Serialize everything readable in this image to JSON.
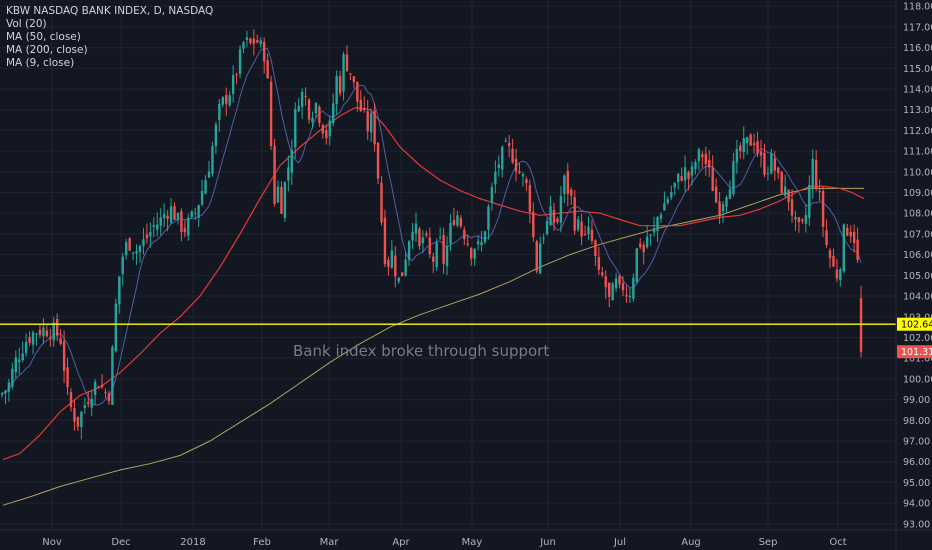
{
  "legend": {
    "title": "KBW NASDAQ BANK INDEX, D, NASDAQ",
    "vol": "Vol (20)",
    "ma50": "MA (50, close)",
    "ma200": "MA (200, close)",
    "ma9": "MA (9, close)"
  },
  "annotation": "Bank index broke through support",
  "colors": {
    "background": "#131722",
    "grid": "#1f2430",
    "up": "#26a69a",
    "down": "#ef5350",
    "ma50": "#e53935",
    "ma200": "#b3a15f",
    "ma9": "#5c6bc0",
    "support": "#ffff00",
    "axis_text": "#b2b5be"
  },
  "chart_data": {
    "type": "candlestick",
    "ylim": [
      92.7,
      118.3
    ],
    "y_ticks": [
      "93.00",
      "94.00",
      "95.00",
      "96.00",
      "97.00",
      "98.00",
      "99.00",
      "100.00",
      "101.00",
      "102.00",
      "103.00",
      "104.00",
      "105.00",
      "106.00",
      "107.00",
      "108.00",
      "109.00",
      "110.00",
      "111.00",
      "112.00",
      "113.00",
      "114.00",
      "115.00",
      "116.00",
      "117.00",
      "118.00"
    ],
    "x_ticks": [
      "Nov",
      "Dec",
      "2018",
      "Feb",
      "Mar",
      "Apr",
      "May",
      "Jun",
      "Jul",
      "Aug",
      "Sep",
      "Oct"
    ],
    "support_level": 102.64,
    "price_labels": [
      {
        "text": "102.64",
        "value": 102.64,
        "color": "#ffff00",
        "text_color": "#000000"
      },
      {
        "text": "101.31",
        "value": 101.31,
        "color": "#ef5350",
        "text_color": "#ffffff"
      }
    ],
    "close_path": [
      [
        0,
        99.2
      ],
      [
        8,
        99.6
      ],
      [
        15,
        100.8
      ],
      [
        25,
        101.8
      ],
      [
        35,
        102.3
      ],
      [
        45,
        102.4
      ],
      [
        55,
        102.3
      ],
      [
        62,
        101.8
      ],
      [
        66,
        99.5
      ],
      [
        72,
        98.4
      ],
      [
        78,
        97.9
      ],
      [
        85,
        98.8
      ],
      [
        92,
        99.5
      ],
      [
        98,
        99.9
      ],
      [
        104,
        99.4
      ],
      [
        110,
        99.3
      ],
      [
        114,
        102.6
      ],
      [
        118,
        104.6
      ],
      [
        124,
        106.3
      ],
      [
        130,
        106.6
      ],
      [
        136,
        106.2
      ],
      [
        142,
        106.5
      ],
      [
        148,
        106.9
      ],
      [
        154,
        107.4
      ],
      [
        160,
        107.6
      ],
      [
        166,
        108.1
      ],
      [
        172,
        108.2
      ],
      [
        178,
        107.6
      ],
      [
        184,
        107.2
      ],
      [
        190,
        107.6
      ],
      [
        196,
        108.1
      ],
      [
        202,
        109.1
      ],
      [
        208,
        110.1
      ],
      [
        214,
        111.6
      ],
      [
        220,
        113.1
      ],
      [
        226,
        113.6
      ],
      [
        232,
        114.1
      ],
      [
        238,
        115.1
      ],
      [
        244,
        116.3
      ],
      [
        250,
        116.1
      ],
      [
        256,
        116.4
      ],
      [
        262,
        115.9
      ],
      [
        266,
        115.6
      ],
      [
        270,
        112.3
      ],
      [
        274,
        108.6
      ],
      [
        278,
        109.2
      ],
      [
        282,
        108.3
      ],
      [
        286,
        109.8
      ],
      [
        290,
        110.6
      ],
      [
        294,
        112.3
      ],
      [
        298,
        113.6
      ],
      [
        304,
        113.8
      ],
      [
        310,
        112.8
      ],
      [
        316,
        113.3
      ],
      [
        322,
        112.3
      ],
      [
        328,
        111.6
      ],
      [
        332,
        112.8
      ],
      [
        336,
        114.6
      ],
      [
        340,
        114.1
      ],
      [
        344,
        115.6
      ],
      [
        348,
        115.1
      ],
      [
        352,
        114.6
      ],
      [
        356,
        113.6
      ],
      [
        360,
        113.1
      ],
      [
        364,
        112.6
      ],
      [
        368,
        112.1
      ],
      [
        372,
        112.6
      ],
      [
        376,
        111.1
      ],
      [
        380,
        108.6
      ],
      [
        384,
        106.1
      ],
      [
        388,
        105.6
      ],
      [
        392,
        106.1
      ],
      [
        396,
        105.1
      ],
      [
        400,
        104.6
      ],
      [
        404,
        105.6
      ],
      [
        408,
        106.6
      ],
      [
        412,
        107.6
      ],
      [
        416,
        107.1
      ],
      [
        420,
        106.1
      ],
      [
        424,
        107.1
      ],
      [
        428,
        106.1
      ],
      [
        432,
        105.6
      ],
      [
        436,
        106.1
      ],
      [
        440,
        106.6
      ],
      [
        444,
        105.6
      ],
      [
        448,
        106.6
      ],
      [
        452,
        107.6
      ],
      [
        456,
        108.1
      ],
      [
        460,
        107.6
      ],
      [
        464,
        107.1
      ],
      [
        468,
        106.6
      ],
      [
        472,
        106.1
      ],
      [
        476,
        106.6
      ],
      [
        480,
        106.1
      ],
      [
        484,
        107.1
      ],
      [
        488,
        108.1
      ],
      [
        492,
        109.1
      ],
      [
        496,
        110.1
      ],
      [
        500,
        110.6
      ],
      [
        506,
        111.1
      ],
      [
        512,
        110.9
      ],
      [
        518,
        110.1
      ],
      [
        524,
        109.6
      ],
      [
        528,
        109.1
      ],
      [
        532,
        107.6
      ],
      [
        536,
        105.1
      ],
      [
        540,
        106.6
      ],
      [
        544,
        107.1
      ],
      [
        548,
        107.6
      ],
      [
        552,
        108.1
      ],
      [
        556,
        107.1
      ],
      [
        560,
        108.6
      ],
      [
        564,
        109.6
      ],
      [
        568,
        109.1
      ],
      [
        572,
        108.6
      ],
      [
        576,
        107.1
      ],
      [
        580,
        107.6
      ],
      [
        584,
        106.6
      ],
      [
        588,
        107.1
      ],
      [
        592,
        106.6
      ],
      [
        596,
        105.6
      ],
      [
        600,
        104.6
      ],
      [
        604,
        105.1
      ],
      [
        608,
        103.6
      ],
      [
        612,
        104.1
      ],
      [
        616,
        104.6
      ],
      [
        620,
        104.1
      ],
      [
        624,
        104.6
      ],
      [
        628,
        103.9
      ],
      [
        632,
        104.6
      ],
      [
        636,
        106.1
      ],
      [
        640,
        106.6
      ],
      [
        644,
        106.1
      ],
      [
        648,
        107.1
      ],
      [
        652,
        106.6
      ],
      [
        656,
        107.6
      ],
      [
        660,
        108.1
      ],
      [
        666,
        108.6
      ],
      [
        672,
        109.1
      ],
      [
        678,
        109.6
      ],
      [
        684,
        110.1
      ],
      [
        690,
        109.6
      ],
      [
        696,
        110.6
      ],
      [
        702,
        110.9
      ],
      [
        708,
        110.1
      ],
      [
        714,
        109.1
      ],
      [
        718,
        108.1
      ],
      [
        722,
        108.6
      ],
      [
        726,
        109.1
      ],
      [
        730,
        109.6
      ],
      [
        736,
        110.6
      ],
      [
        742,
        111.1
      ],
      [
        748,
        111.4
      ],
      [
        754,
        111.6
      ],
      [
        760,
        110.6
      ],
      [
        766,
        110.1
      ],
      [
        772,
        110.6
      ],
      [
        778,
        109.6
      ],
      [
        784,
        109.1
      ],
      [
        790,
        108.6
      ],
      [
        794,
        107.6
      ],
      [
        798,
        107.1
      ],
      [
        804,
        107.3
      ],
      [
        808,
        108.6
      ],
      [
        812,
        110.6
      ],
      [
        816,
        109.6
      ],
      [
        820,
        108.6
      ],
      [
        824,
        107.1
      ],
      [
        828,
        106.1
      ],
      [
        832,
        105.6
      ],
      [
        836,
        104.9
      ],
      [
        840,
        105.6
      ],
      [
        844,
        107.1
      ],
      [
        848,
        107.3
      ],
      [
        852,
        107.1
      ],
      [
        856,
        106.6
      ],
      [
        860,
        104.0
      ],
      [
        863,
        101.31
      ]
    ],
    "ma50": [
      [
        3,
        96.1
      ],
      [
        20,
        96.4
      ],
      [
        40,
        97.3
      ],
      [
        60,
        98.4
      ],
      [
        80,
        99.2
      ],
      [
        100,
        99.6
      ],
      [
        120,
        100.3
      ],
      [
        140,
        101.2
      ],
      [
        160,
        102.2
      ],
      [
        180,
        103.0
      ],
      [
        200,
        104.0
      ],
      [
        220,
        105.4
      ],
      [
        240,
        107.0
      ],
      [
        260,
        108.7
      ],
      [
        280,
        110.3
      ],
      [
        300,
        111.2
      ],
      [
        320,
        112.0
      ],
      [
        340,
        112.7
      ],
      [
        355,
        113.1
      ],
      [
        370,
        113.0
      ],
      [
        385,
        112.2
      ],
      [
        400,
        111.2
      ],
      [
        420,
        110.3
      ],
      [
        440,
        109.6
      ],
      [
        460,
        109.1
      ],
      [
        480,
        108.7
      ],
      [
        500,
        108.4
      ],
      [
        520,
        108.1
      ],
      [
        540,
        107.9
      ],
      [
        560,
        108.0
      ],
      [
        580,
        108.1
      ],
      [
        600,
        108.0
      ],
      [
        620,
        107.7
      ],
      [
        640,
        107.4
      ],
      [
        660,
        107.4
      ],
      [
        680,
        107.4
      ],
      [
        700,
        107.6
      ],
      [
        720,
        107.8
      ],
      [
        740,
        107.9
      ],
      [
        760,
        108.2
      ],
      [
        780,
        108.6
      ],
      [
        800,
        109.1
      ],
      [
        810,
        109.3
      ],
      [
        825,
        109.3
      ],
      [
        840,
        109.2
      ],
      [
        852,
        109.0
      ],
      [
        864,
        108.7
      ]
    ],
    "ma200": [
      [
        3,
        93.9
      ],
      [
        30,
        94.3
      ],
      [
        60,
        94.8
      ],
      [
        90,
        95.2
      ],
      [
        120,
        95.6
      ],
      [
        150,
        95.9
      ],
      [
        180,
        96.3
      ],
      [
        210,
        97.0
      ],
      [
        240,
        97.9
      ],
      [
        270,
        98.8
      ],
      [
        300,
        99.8
      ],
      [
        330,
        100.8
      ],
      [
        360,
        101.7
      ],
      [
        390,
        102.5
      ],
      [
        420,
        103.1
      ],
      [
        450,
        103.6
      ],
      [
        480,
        104.1
      ],
      [
        510,
        104.7
      ],
      [
        540,
        105.4
      ],
      [
        570,
        106.0
      ],
      [
        600,
        106.5
      ],
      [
        630,
        106.9
      ],
      [
        660,
        107.3
      ],
      [
        690,
        107.6
      ],
      [
        720,
        107.9
      ],
      [
        750,
        108.4
      ],
      [
        780,
        108.9
      ],
      [
        810,
        109.2
      ],
      [
        840,
        109.2
      ],
      [
        864,
        109.2
      ]
    ]
  }
}
